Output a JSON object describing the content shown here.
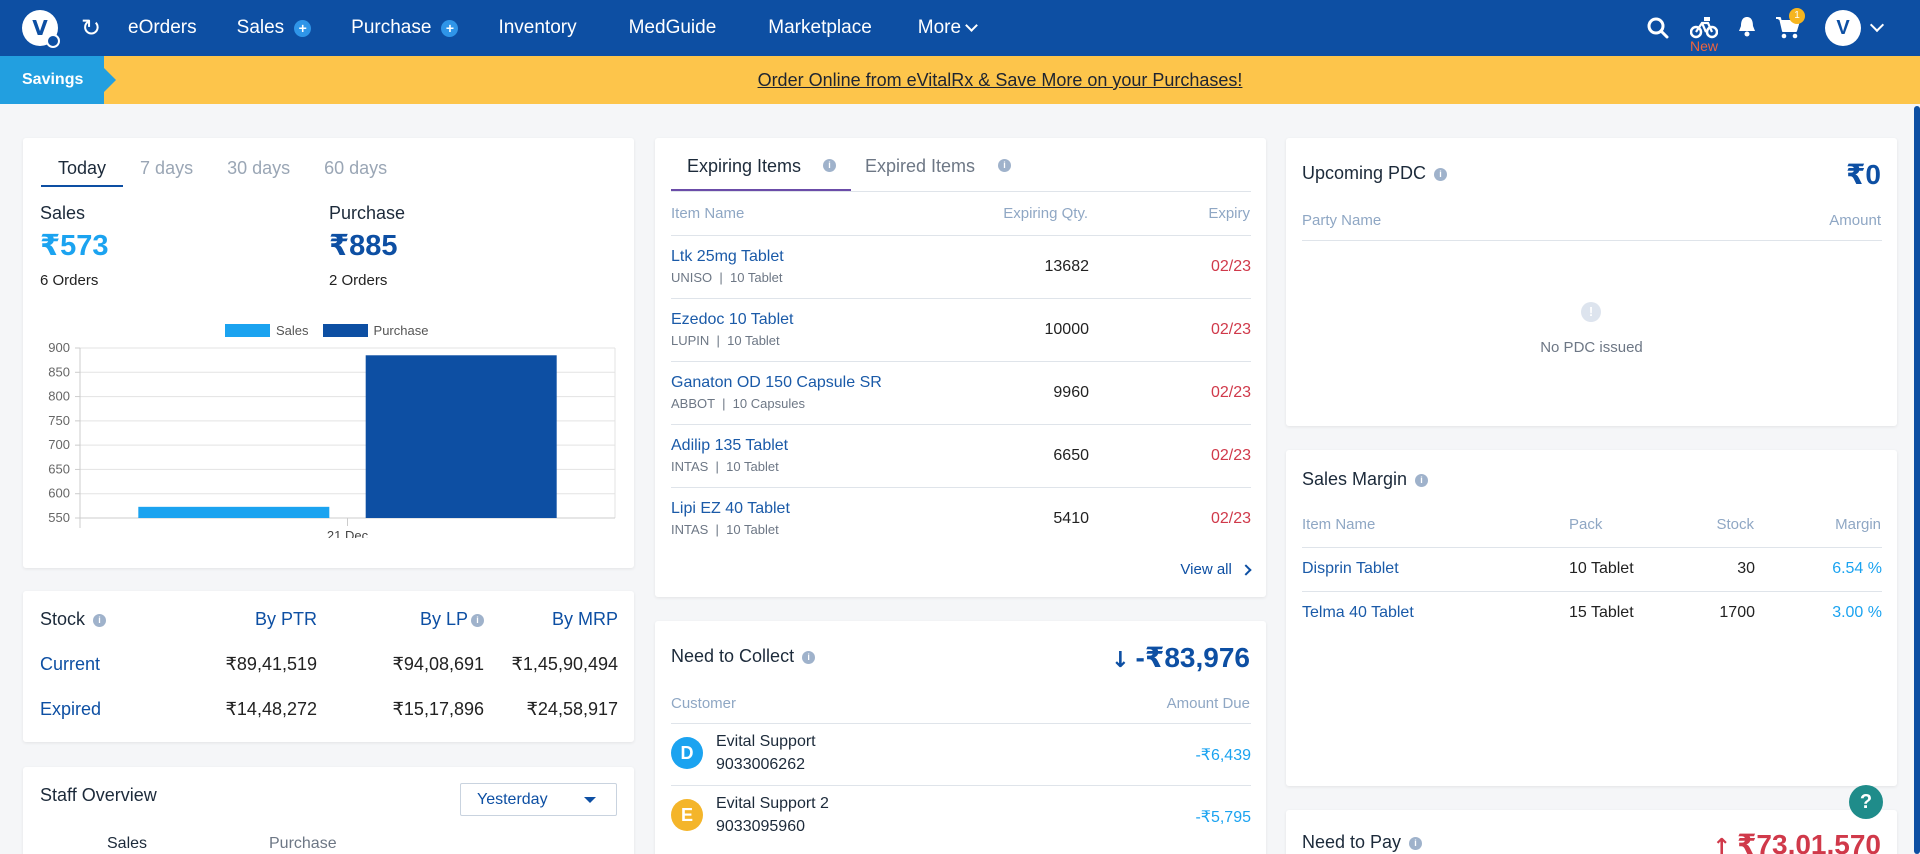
{
  "nav": {
    "items": [
      {
        "label": "eOrders",
        "plus": false
      },
      {
        "label": "Sales",
        "plus": true
      },
      {
        "label": "Purchase",
        "plus": true
      },
      {
        "label": "Inventory",
        "plus": false
      },
      {
        "label": "MedGuide",
        "plus": false
      },
      {
        "label": "Marketplace",
        "plus": false
      }
    ],
    "more_label": "More",
    "new_label": "New",
    "cart_badge": "1",
    "logo_letter": "V"
  },
  "banner": {
    "tag": "Savings",
    "link_text": "Order Online from eVitalRx & Save More on your Purchases!"
  },
  "sales_card": {
    "tabs": [
      "Today",
      "7 days",
      "30 days",
      "60 days"
    ],
    "active_tab": "Today",
    "sales_label": "Sales",
    "sales_value": "₹573",
    "sales_orders": "6 Orders",
    "purchase_label": "Purchase",
    "purchase_value": "₹885",
    "purchase_orders": "2 Orders"
  },
  "chart_data": {
    "type": "bar",
    "categories": [
      "21 Dec"
    ],
    "series": [
      {
        "name": "Sales",
        "values": [
          573
        ],
        "color": "#1ba3f0"
      },
      {
        "name": "Purchase",
        "values": [
          885
        ],
        "color": "#0d4fa3"
      }
    ],
    "ylim": [
      550,
      900
    ],
    "yticks": [
      550,
      600,
      650,
      700,
      750,
      800,
      850,
      900
    ],
    "legend": "top-center",
    "grid": true
  },
  "stock": {
    "title": "Stock",
    "headers": [
      "By PTR",
      "By LP",
      "By MRP"
    ],
    "rows": [
      {
        "label": "Current",
        "values": [
          "₹89,41,519",
          "₹94,08,691",
          "₹1,45,90,494"
        ]
      },
      {
        "label": "Expired",
        "values": [
          "₹14,48,272",
          "₹15,17,896",
          "₹24,58,917"
        ]
      }
    ]
  },
  "staff": {
    "title": "Staff Overview",
    "dropdown": "Yesterday",
    "cols": [
      "Sales",
      "Purchase"
    ]
  },
  "expiring": {
    "tabs": [
      "Expiring Items",
      "Expired Items"
    ],
    "headers": [
      "Item Name",
      "Expiring Qty.",
      "Expiry"
    ],
    "rows": [
      {
        "name": "Ltk 25mg Tablet",
        "mfr": "UNISO",
        "pack": "10 Tablet",
        "qty": "13682",
        "expiry": "02/23"
      },
      {
        "name": "Ezedoc 10 Tablet",
        "mfr": "LUPIN",
        "pack": "10 Tablet",
        "qty": "10000",
        "expiry": "02/23"
      },
      {
        "name": "Ganaton OD 150 Capsule SR",
        "mfr": "ABBOT",
        "pack": "10 Capsules",
        "qty": "9960",
        "expiry": "02/23"
      },
      {
        "name": "Adilip 135 Tablet",
        "mfr": "INTAS",
        "pack": "10 Tablet",
        "qty": "6650",
        "expiry": "02/23"
      },
      {
        "name": "Lipi EZ 40 Tablet",
        "mfr": "INTAS",
        "pack": "10 Tablet",
        "qty": "5410",
        "expiry": "02/23"
      }
    ],
    "view_all": "View all"
  },
  "collect": {
    "title": "Need to Collect",
    "total": "-₹83,976",
    "headers": [
      "Customer",
      "Amount Due"
    ],
    "rows": [
      {
        "initial": "D",
        "name": "Evital Support",
        "phone": "9033006262",
        "amount": "-₹6,439",
        "color": "#1ba3f0"
      },
      {
        "initial": "E",
        "name": "Evital Support 2",
        "phone": "9033095960",
        "amount": "-₹5,795",
        "color": "#f4b52a"
      }
    ]
  },
  "pdc": {
    "title": "Upcoming PDC",
    "amount": "₹0",
    "headers": [
      "Party Name",
      "Amount"
    ],
    "empty": "No PDC issued"
  },
  "margin": {
    "title": "Sales Margin",
    "headers": [
      "Item Name",
      "Pack",
      "Stock",
      "Margin"
    ],
    "rows": [
      {
        "name": "Disprin Tablet",
        "pack": "10 Tablet",
        "stock": "30",
        "margin": "6.54 %"
      },
      {
        "name": "Telma 40 Tablet",
        "pack": "15 Tablet",
        "stock": "1700",
        "margin": "3.00 %"
      }
    ]
  },
  "pay": {
    "title": "Need to Pay",
    "total": "₹73,01,570"
  }
}
